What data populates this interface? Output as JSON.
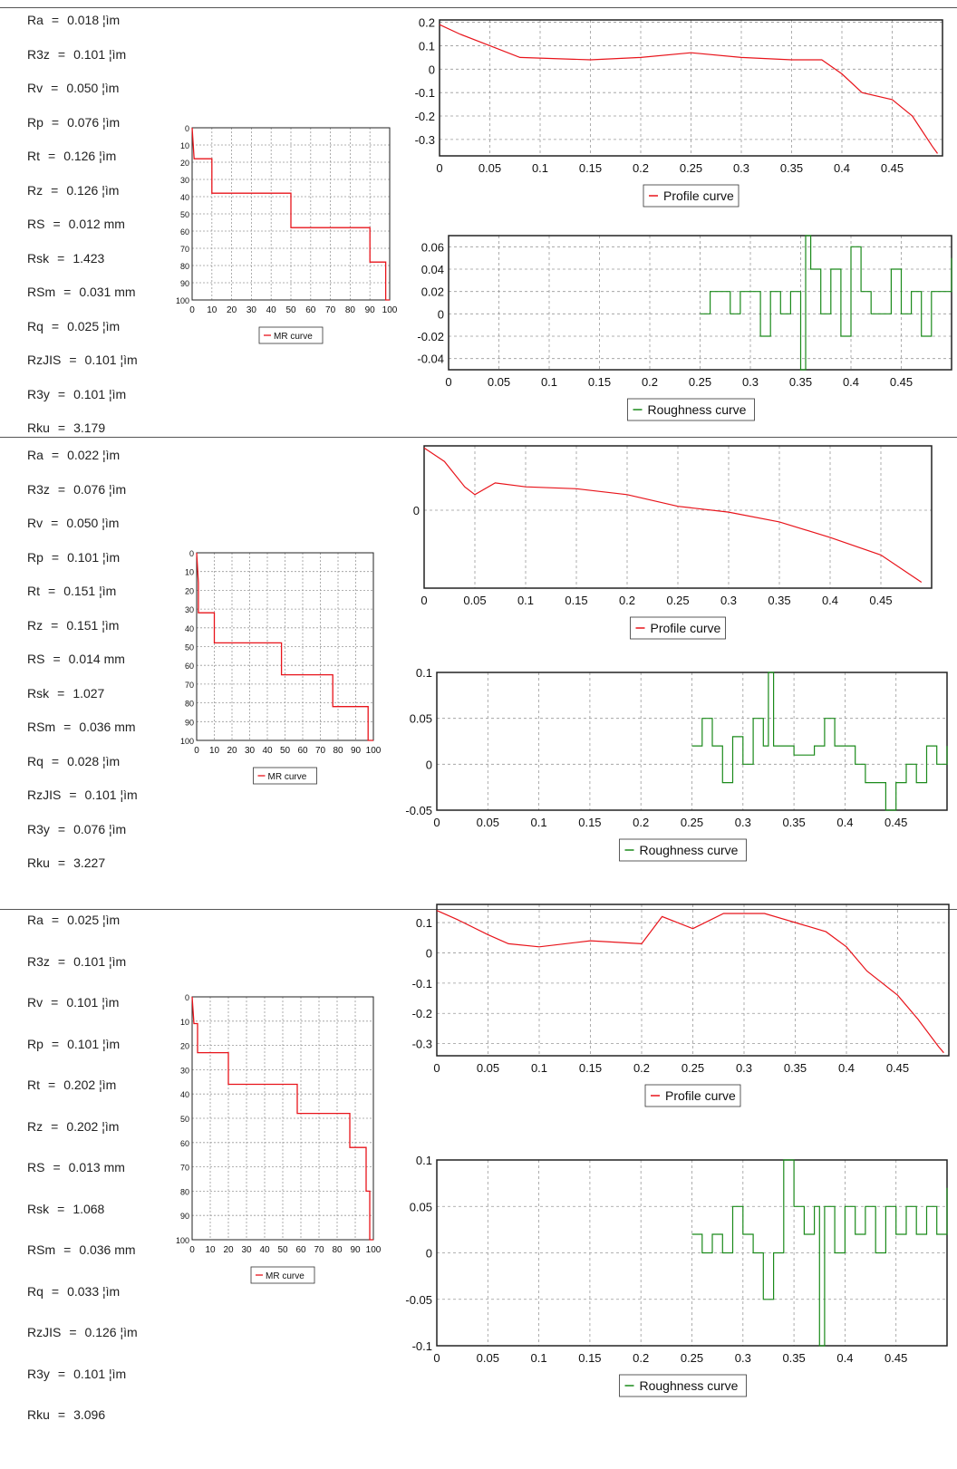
{
  "colors": {
    "profile": "#e8141b",
    "roughness": "#1b8a1b",
    "mr": "#e8141b",
    "grid": "#999999",
    "frame": "#222222"
  },
  "sections": [
    {
      "params": [
        {
          "name": "Ra",
          "value": "0.018 ¦ìm"
        },
        {
          "name": "R3z",
          "value": "0.101 ¦ìm"
        },
        {
          "name": "Rv",
          "value": "0.050 ¦ìm"
        },
        {
          "name": "Rp",
          "value": "0.076 ¦ìm"
        },
        {
          "name": "Rt",
          "value": "0.126 ¦ìm"
        },
        {
          "name": "Rz",
          "value": "0.126 ¦ìm"
        },
        {
          "name": "RS",
          "value": "0.012 mm"
        },
        {
          "name": "Rsk",
          "value": "1.423"
        },
        {
          "name": "RSm",
          "value": "0.031 mm"
        },
        {
          "name": "Rq",
          "value": "0.025 ¦ìm"
        },
        {
          "name": "RzJIS",
          "value": "0.101 ¦ìm"
        },
        {
          "name": "R3y",
          "value": "0.101 ¦ìm"
        },
        {
          "name": "Rku",
          "value": "3.179"
        }
      ],
      "mr": {
        "legend": "MR curve",
        "xticks": [
          0,
          10,
          20,
          30,
          40,
          50,
          60,
          70,
          80,
          90,
          100
        ],
        "yticks": [
          0,
          10,
          20,
          30,
          40,
          50,
          60,
          70,
          80,
          90,
          100
        ],
        "steps": [
          [
            0,
            0
          ],
          [
            1,
            18
          ],
          [
            10,
            18
          ],
          [
            10,
            38
          ],
          [
            50,
            38
          ],
          [
            50,
            58
          ],
          [
            90,
            58
          ],
          [
            90,
            78
          ],
          [
            98,
            78
          ],
          [
            98,
            100
          ],
          [
            100,
            100
          ]
        ]
      },
      "profile": {
        "legend": "Profile curve",
        "yticks": [
          0.2,
          0.1,
          0,
          -0.1,
          -0.2,
          -0.3
        ],
        "ylim": [
          -0.37,
          0.21
        ],
        "xticks": [
          0,
          0.05,
          0.1,
          0.15,
          0.2,
          0.25,
          0.3,
          0.35,
          0.4,
          0.45
        ],
        "xlim": [
          0,
          0.5
        ],
        "points": [
          [
            0,
            0.19
          ],
          [
            0.02,
            0.15
          ],
          [
            0.05,
            0.1
          ],
          [
            0.08,
            0.05
          ],
          [
            0.15,
            0.04
          ],
          [
            0.2,
            0.05
          ],
          [
            0.25,
            0.07
          ],
          [
            0.3,
            0.05
          ],
          [
            0.35,
            0.04
          ],
          [
            0.38,
            0.04
          ],
          [
            0.4,
            -0.02
          ],
          [
            0.42,
            -0.1
          ],
          [
            0.45,
            -0.13
          ],
          [
            0.47,
            -0.2
          ],
          [
            0.49,
            -0.33
          ],
          [
            0.495,
            -0.36
          ]
        ]
      },
      "roughness": {
        "legend": "Roughness curve",
        "yticks": [
          0.06,
          0.04,
          0.02,
          0,
          -0.02,
          -0.04
        ],
        "ylim": [
          -0.05,
          0.07
        ],
        "xticks": [
          0,
          0.05,
          0.1,
          0.15,
          0.2,
          0.25,
          0.3,
          0.35,
          0.4,
          0.45
        ],
        "xlim": [
          0,
          0.5
        ],
        "points": [
          [
            0.25,
            0
          ],
          [
            0.26,
            0.02
          ],
          [
            0.27,
            0.02
          ],
          [
            0.28,
            0
          ],
          [
            0.29,
            0.02
          ],
          [
            0.3,
            0.02
          ],
          [
            0.31,
            -0.02
          ],
          [
            0.32,
            0.02
          ],
          [
            0.33,
            0
          ],
          [
            0.34,
            0.02
          ],
          [
            0.35,
            -0.05
          ],
          [
            0.355,
            0.07
          ],
          [
            0.36,
            0.04
          ],
          [
            0.37,
            0
          ],
          [
            0.38,
            0.04
          ],
          [
            0.39,
            -0.02
          ],
          [
            0.4,
            0.06
          ],
          [
            0.41,
            0.02
          ],
          [
            0.42,
            0
          ],
          [
            0.44,
            0.04
          ],
          [
            0.45,
            0
          ],
          [
            0.46,
            0.02
          ],
          [
            0.47,
            -0.02
          ],
          [
            0.48,
            0.02
          ],
          [
            0.49,
            0.02
          ],
          [
            0.5,
            0.05
          ]
        ]
      }
    },
    {
      "params": [
        {
          "name": "Ra",
          "value": "0.022 ¦ìm"
        },
        {
          "name": "R3z",
          "value": "0.076 ¦ìm"
        },
        {
          "name": "Rv",
          "value": "0.050 ¦ìm"
        },
        {
          "name": "Rp",
          "value": "0.101 ¦ìm"
        },
        {
          "name": "Rt",
          "value": "0.151 ¦ìm"
        },
        {
          "name": "Rz",
          "value": "0.151 ¦ìm"
        },
        {
          "name": "RS",
          "value": "0.014 mm"
        },
        {
          "name": "Rsk",
          "value": "1.027"
        },
        {
          "name": "RSm",
          "value": "0.036 mm"
        },
        {
          "name": "Rq",
          "value": "0.028 ¦ìm"
        },
        {
          "name": "RzJIS",
          "value": "0.101 ¦ìm"
        },
        {
          "name": "R3y",
          "value": "0.076 ¦ìm"
        },
        {
          "name": "Rku",
          "value": "3.227"
        }
      ],
      "mr": {
        "legend": "MR curve",
        "xticks": [
          0,
          10,
          20,
          30,
          40,
          50,
          60,
          70,
          80,
          90,
          100
        ],
        "yticks": [
          0,
          10,
          20,
          30,
          40,
          50,
          60,
          70,
          80,
          90,
          100
        ],
        "steps": [
          [
            0,
            0
          ],
          [
            1,
            16
          ],
          [
            1,
            32
          ],
          [
            10,
            32
          ],
          [
            10,
            48
          ],
          [
            48,
            48
          ],
          [
            48,
            65
          ],
          [
            77,
            65
          ],
          [
            77,
            82
          ],
          [
            97,
            82
          ],
          [
            97,
            100
          ],
          [
            100,
            100
          ]
        ]
      },
      "profile": {
        "legend": "Profile curve",
        "yticks": [
          0
        ],
        "ylim": [
          -0.4,
          0.33
        ],
        "xticks": [
          0,
          0.05,
          0.1,
          0.15,
          0.2,
          0.25,
          0.3,
          0.35,
          0.4,
          0.45
        ],
        "xlim": [
          0,
          0.5
        ],
        "points": [
          [
            0,
            0.32
          ],
          [
            0.02,
            0.25
          ],
          [
            0.04,
            0.12
          ],
          [
            0.05,
            0.08
          ],
          [
            0.07,
            0.14
          ],
          [
            0.1,
            0.12
          ],
          [
            0.15,
            0.11
          ],
          [
            0.2,
            0.08
          ],
          [
            0.25,
            0.02
          ],
          [
            0.3,
            -0.01
          ],
          [
            0.35,
            -0.06
          ],
          [
            0.4,
            -0.14
          ],
          [
            0.45,
            -0.23
          ],
          [
            0.49,
            -0.37
          ]
        ]
      },
      "roughness": {
        "legend": "Roughness curve",
        "yticks": [
          0.1,
          0.05,
          0,
          -0.05
        ],
        "ylim": [
          -0.05,
          0.1
        ],
        "xticks": [
          0,
          0.05,
          0.1,
          0.15,
          0.2,
          0.25,
          0.3,
          0.35,
          0.4,
          0.45
        ],
        "xlim": [
          0,
          0.5
        ],
        "points": [
          [
            0.25,
            0.02
          ],
          [
            0.26,
            0.05
          ],
          [
            0.27,
            0.02
          ],
          [
            0.28,
            -0.02
          ],
          [
            0.29,
            0.03
          ],
          [
            0.3,
            0
          ],
          [
            0.31,
            0.05
          ],
          [
            0.32,
            0.02
          ],
          [
            0.325,
            0.1
          ],
          [
            0.33,
            0.02
          ],
          [
            0.34,
            0.02
          ],
          [
            0.35,
            0.01
          ],
          [
            0.37,
            0.02
          ],
          [
            0.38,
            0.05
          ],
          [
            0.39,
            0.02
          ],
          [
            0.4,
            0.02
          ],
          [
            0.41,
            0
          ],
          [
            0.42,
            -0.02
          ],
          [
            0.43,
            -0.02
          ],
          [
            0.44,
            -0.05
          ],
          [
            0.45,
            -0.02
          ],
          [
            0.46,
            0
          ],
          [
            0.47,
            -0.02
          ],
          [
            0.48,
            0.02
          ],
          [
            0.49,
            0
          ],
          [
            0.5,
            0.02
          ]
        ]
      }
    },
    {
      "params": [
        {
          "name": "Ra",
          "value": "0.025 ¦ìm"
        },
        {
          "name": "R3z",
          "value": "0.101 ¦ìm"
        },
        {
          "name": "Rv",
          "value": "0.101 ¦ìm"
        },
        {
          "name": "Rp",
          "value": "0.101 ¦ìm"
        },
        {
          "name": "Rt",
          "value": "0.202 ¦ìm"
        },
        {
          "name": "Rz",
          "value": "0.202 ¦ìm"
        },
        {
          "name": "RS",
          "value": "0.013 mm"
        },
        {
          "name": "Rsk",
          "value": "1.068"
        },
        {
          "name": "RSm",
          "value": "0.036 mm"
        },
        {
          "name": "Rq",
          "value": "0.033 ¦ìm"
        },
        {
          "name": "RzJIS",
          "value": "0.126 ¦ìm"
        },
        {
          "name": "R3y",
          "value": "0.101 ¦ìm"
        },
        {
          "name": "Rku",
          "value": "3.096"
        }
      ],
      "mr": {
        "legend": "MR curve",
        "xticks": [
          0,
          10,
          20,
          30,
          40,
          50,
          60,
          70,
          80,
          90,
          100
        ],
        "yticks": [
          "0",
          "10",
          "20",
          "30",
          "40",
          "50",
          "60",
          "70",
          "80",
          "90",
          "100"
        ],
        "steps": [
          [
            0,
            0
          ],
          [
            1,
            11
          ],
          [
            3,
            11
          ],
          [
            3,
            23
          ],
          [
            20,
            23
          ],
          [
            20,
            36
          ],
          [
            58,
            36
          ],
          [
            58,
            48
          ],
          [
            87,
            48
          ],
          [
            87,
            62
          ],
          [
            96,
            62
          ],
          [
            96,
            80
          ],
          [
            98,
            80
          ],
          [
            98,
            100
          ],
          [
            100,
            100
          ]
        ]
      },
      "profile": {
        "legend": "Profile curve",
        "yticks": [
          0.1,
          0,
          -0.1,
          -0.2,
          -0.3
        ],
        "ylim": [
          -0.34,
          0.16
        ],
        "xticks": [
          0,
          0.05,
          0.1,
          0.15,
          0.2,
          0.25,
          0.3,
          0.35,
          0.4,
          0.45
        ],
        "xlim": [
          0,
          0.5
        ],
        "points": [
          [
            0,
            0.14
          ],
          [
            0.02,
            0.11
          ],
          [
            0.05,
            0.06
          ],
          [
            0.07,
            0.03
          ],
          [
            0.1,
            0.02
          ],
          [
            0.15,
            0.04
          ],
          [
            0.2,
            0.03
          ],
          [
            0.22,
            0.12
          ],
          [
            0.25,
            0.08
          ],
          [
            0.28,
            0.13
          ],
          [
            0.32,
            0.13
          ],
          [
            0.35,
            0.1
          ],
          [
            0.38,
            0.07
          ],
          [
            0.4,
            0.02
          ],
          [
            0.42,
            -0.06
          ],
          [
            0.45,
            -0.14
          ],
          [
            0.47,
            -0.22
          ],
          [
            0.49,
            -0.31
          ],
          [
            0.495,
            -0.33
          ]
        ]
      },
      "roughness": {
        "legend": "Roughness curve",
        "yticks": [
          0.1,
          0.05,
          0,
          -0.05,
          -0.1
        ],
        "ylim": [
          -0.1,
          0.1
        ],
        "xticks": [
          0,
          0.05,
          0.1,
          0.15,
          0.2,
          0.25,
          0.3,
          0.35,
          0.4,
          0.45
        ],
        "xlim": [
          0,
          0.5
        ],
        "points": [
          [
            0.25,
            0.02
          ],
          [
            0.26,
            0
          ],
          [
            0.27,
            0.02
          ],
          [
            0.28,
            0
          ],
          [
            0.29,
            0.05
          ],
          [
            0.3,
            0.02
          ],
          [
            0.31,
            0
          ],
          [
            0.32,
            -0.05
          ],
          [
            0.33,
            0
          ],
          [
            0.34,
            0.1
          ],
          [
            0.35,
            0.05
          ],
          [
            0.36,
            0.02
          ],
          [
            0.37,
            0.05
          ],
          [
            0.375,
            -0.1
          ],
          [
            0.38,
            0.05
          ],
          [
            0.39,
            0
          ],
          [
            0.4,
            0.05
          ],
          [
            0.41,
            0.02
          ],
          [
            0.42,
            0.05
          ],
          [
            0.43,
            0
          ],
          [
            0.44,
            0.05
          ],
          [
            0.45,
            0.02
          ],
          [
            0.46,
            0.05
          ],
          [
            0.47,
            0.02
          ],
          [
            0.48,
            0.05
          ],
          [
            0.49,
            0.02
          ],
          [
            0.5,
            0.07
          ]
        ]
      }
    }
  ],
  "chart_data": [
    {
      "type": "line",
      "series": [
        {
          "name": "MR curve"
        }
      ],
      "note_ref": "sections.0.mr"
    },
    {
      "type": "line",
      "series": [
        {
          "name": "Profile curve"
        }
      ],
      "note_ref": "sections.0.profile"
    },
    {
      "type": "line",
      "series": [
        {
          "name": "Roughness curve"
        }
      ],
      "note_ref": "sections.0.roughness"
    },
    {
      "type": "line",
      "series": [
        {
          "name": "MR curve"
        }
      ],
      "note_ref": "sections.1.mr"
    },
    {
      "type": "line",
      "series": [
        {
          "name": "Profile curve"
        }
      ],
      "note_ref": "sections.1.profile"
    },
    {
      "type": "line",
      "series": [
        {
          "name": "Roughness curve"
        }
      ],
      "note_ref": "sections.1.roughness"
    },
    {
      "type": "line",
      "series": [
        {
          "name": "MR curve"
        }
      ],
      "note_ref": "sections.2.mr"
    },
    {
      "type": "line",
      "series": [
        {
          "name": "Profile curve"
        }
      ],
      "note_ref": "sections.2.profile"
    },
    {
      "type": "line",
      "series": [
        {
          "name": "Roughness curve"
        }
      ],
      "note_ref": "sections.2.roughness"
    }
  ]
}
